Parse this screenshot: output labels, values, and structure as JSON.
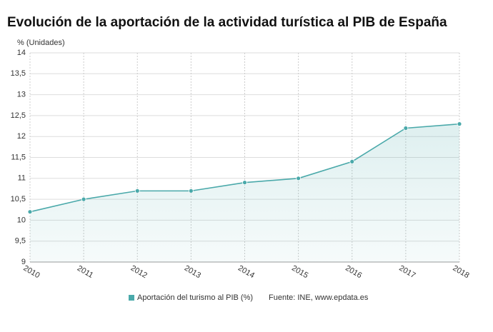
{
  "chart_data": {
    "type": "line",
    "title": "Evolución de la aportación de la actividad turística al PIB de España",
    "y_label": "% (Unidades)",
    "categories": [
      "2010",
      "2011",
      "2012",
      "2013",
      "2014",
      "2015",
      "2016",
      "2017",
      "2018"
    ],
    "series": [
      {
        "name": "Aportación del turismo al PIB (%)",
        "color": "#4aa9aa",
        "values": [
          10.2,
          10.5,
          10.7,
          10.7,
          10.9,
          11,
          11.4,
          12.2,
          12.3
        ]
      }
    ],
    "ylim": [
      9,
      14
    ],
    "yticks": [
      9,
      {
        "value": 9.5,
        "label": "9,5"
      },
      10,
      {
        "value": 10.5,
        "label": "10,5"
      },
      11,
      {
        "value": 11.5,
        "label": "11,5"
      },
      12,
      {
        "value": 12.5,
        "label": "12,5"
      },
      13,
      {
        "value": 13.5,
        "label": "13,5"
      },
      14
    ],
    "grid": true,
    "source": "Fuente: INE, www.epdata.es"
  }
}
